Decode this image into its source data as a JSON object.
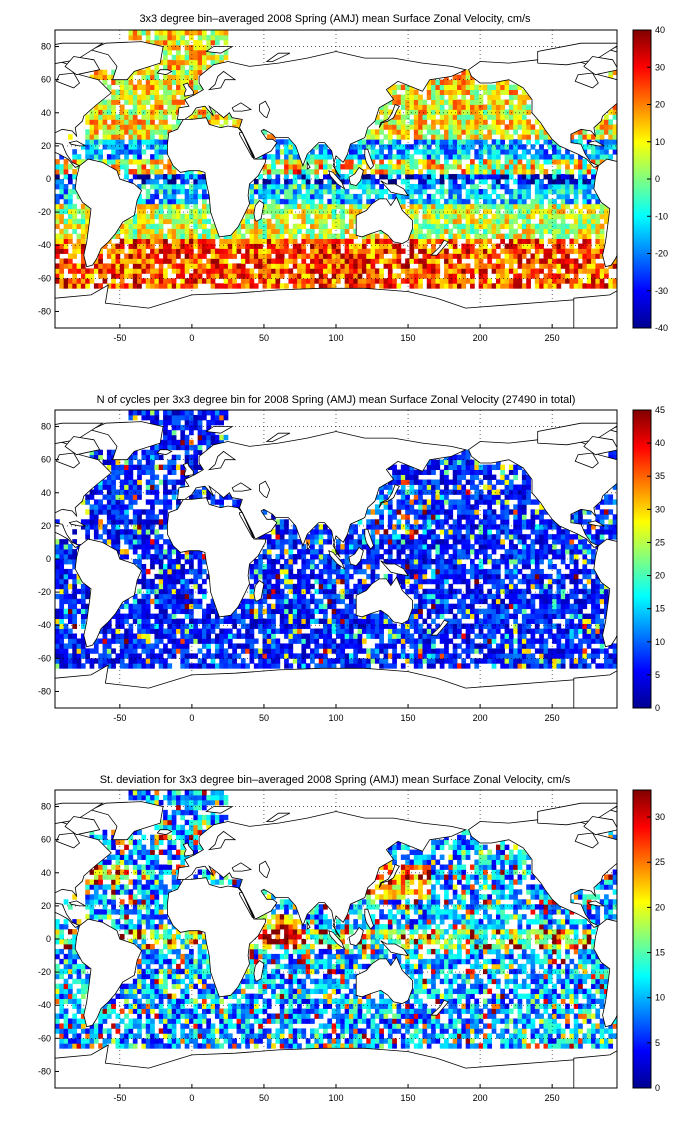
{
  "chart_data": [
    {
      "type": "heatmap",
      "title": "3x3 degree bin–averaged 2008 Spring (AMJ) mean Surface Zonal Velocity, cm/s",
      "xlabel": "",
      "ylabel": "",
      "xlim": [
        -95,
        295
      ],
      "ylim": [
        -90,
        90
      ],
      "x_ticks": [
        -50,
        0,
        50,
        100,
        150,
        200,
        250
      ],
      "y_ticks": [
        -80,
        -60,
        -40,
        -20,
        0,
        20,
        40,
        60,
        80
      ],
      "grid": true,
      "colorbar": {
        "min": -40,
        "max": 40,
        "ticks": [
          -40,
          -30,
          -20,
          -10,
          0,
          10,
          20,
          30,
          40
        ],
        "colormap": "jet"
      },
      "pattern": "zonal"
    },
    {
      "type": "heatmap",
      "title": "N of cycles per 3x3 degree bin for 2008 Spring (AMJ) mean Surface Zonal Velocity (27490 in total)",
      "xlabel": "",
      "ylabel": "",
      "xlim": [
        -95,
        295
      ],
      "ylim": [
        -90,
        90
      ],
      "x_ticks": [
        -50,
        0,
        50,
        100,
        150,
        200,
        250
      ],
      "y_ticks": [
        -80,
        -60,
        -40,
        -20,
        0,
        20,
        40,
        60,
        80
      ],
      "grid": true,
      "colorbar": {
        "min": 0,
        "max": 45,
        "ticks": [
          0,
          5,
          10,
          15,
          20,
          25,
          30,
          35,
          40,
          45
        ],
        "colormap": "jet"
      },
      "pattern": "count"
    },
    {
      "type": "heatmap",
      "title": "St. deviation for 3x3 degree bin–averaged 2008 Spring (AMJ) mean Surface Zonal Velocity, cm/s",
      "xlabel": "",
      "ylabel": "",
      "xlim": [
        -95,
        295
      ],
      "ylim": [
        -90,
        90
      ],
      "x_ticks": [
        -50,
        0,
        50,
        100,
        150,
        200,
        250
      ],
      "y_ticks": [
        -80,
        -60,
        -40,
        -20,
        0,
        20,
        40,
        60,
        80
      ],
      "grid": true,
      "colorbar": {
        "min": 0,
        "max": 33,
        "ticks": [
          0,
          5,
          10,
          15,
          20,
          25,
          30
        ],
        "colormap": "jet"
      },
      "pattern": "std"
    }
  ]
}
